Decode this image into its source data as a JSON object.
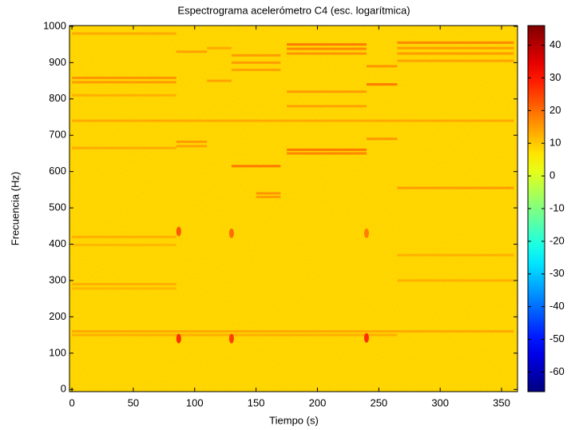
{
  "chart_data": {
    "type": "spectrogram",
    "title": "Espectrograma acelerómetro C4 (esc. logarítmica)",
    "x_label": "Tiempo (s)",
    "y_label": "Frecuencia (Hz)",
    "colormap": "jet",
    "xlim": [
      -2,
      363
    ],
    "xticks": [
      0,
      50,
      100,
      150,
      200,
      250,
      300,
      350
    ],
    "ylim": [
      -6,
      1002
    ],
    "yticks": [
      0,
      100,
      200,
      300,
      400,
      500,
      600,
      700,
      800,
      900,
      1000
    ],
    "clim": [
      -66,
      46
    ],
    "cticks": [
      40,
      30,
      20,
      10,
      0,
      -10,
      -20,
      -30,
      -40,
      -50,
      -60
    ],
    "background_level": 8,
    "lines": [
      {
        "t": [
          0,
          85
        ],
        "f": 980,
        "level": 15
      },
      {
        "t": [
          0,
          85
        ],
        "f": 858,
        "level": 18
      },
      {
        "t": [
          0,
          85
        ],
        "f": 846,
        "level": 17
      },
      {
        "t": [
          0,
          85
        ],
        "f": 810,
        "level": 14
      },
      {
        "t": [
          0,
          360
        ],
        "f": 740,
        "level": 15
      },
      {
        "t": [
          0,
          85
        ],
        "f": 665,
        "level": 15
      },
      {
        "t": [
          0,
          85
        ],
        "f": 420,
        "level": 14
      },
      {
        "t": [
          0,
          85
        ],
        "f": 398,
        "level": 13
      },
      {
        "t": [
          0,
          85
        ],
        "f": 290,
        "level": 14
      },
      {
        "t": [
          0,
          85
        ],
        "f": 278,
        "level": 13
      },
      {
        "t": [
          0,
          360
        ],
        "f": 160,
        "level": 15
      },
      {
        "t": [
          0,
          265
        ],
        "f": 150,
        "level": 14
      },
      {
        "t": [
          85,
          110
        ],
        "f": 930,
        "level": 16
      },
      {
        "t": [
          85,
          110
        ],
        "f": 682,
        "level": 17
      },
      {
        "t": [
          85,
          110
        ],
        "f": 670,
        "level": 16
      },
      {
        "t": [
          110,
          130
        ],
        "f": 940,
        "level": 15
      },
      {
        "t": [
          110,
          130
        ],
        "f": 850,
        "level": 16
      },
      {
        "t": [
          130,
          170
        ],
        "f": 920,
        "level": 17
      },
      {
        "t": [
          130,
          170
        ],
        "f": 900,
        "level": 17
      },
      {
        "t": [
          130,
          170
        ],
        "f": 880,
        "level": 16
      },
      {
        "t": [
          130,
          170
        ],
        "f": 615,
        "level": 22
      },
      {
        "t": [
          150,
          170
        ],
        "f": 540,
        "level": 18
      },
      {
        "t": [
          150,
          170
        ],
        "f": 530,
        "level": 17
      },
      {
        "t": [
          175,
          240
        ],
        "f": 950,
        "level": 22
      },
      {
        "t": [
          175,
          240
        ],
        "f": 938,
        "level": 20
      },
      {
        "t": [
          175,
          240
        ],
        "f": 925,
        "level": 18
      },
      {
        "t": [
          175,
          240
        ],
        "f": 820,
        "level": 17
      },
      {
        "t": [
          175,
          240
        ],
        "f": 780,
        "level": 16
      },
      {
        "t": [
          175,
          240
        ],
        "f": 660,
        "level": 22
      },
      {
        "t": [
          175,
          240
        ],
        "f": 650,
        "level": 20
      },
      {
        "t": [
          240,
          265
        ],
        "f": 890,
        "level": 18
      },
      {
        "t": [
          240,
          265
        ],
        "f": 840,
        "level": 22
      },
      {
        "t": [
          240,
          265
        ],
        "f": 690,
        "level": 18
      },
      {
        "t": [
          265,
          360
        ],
        "f": 955,
        "level": 20
      },
      {
        "t": [
          265,
          360
        ],
        "f": 940,
        "level": 17
      },
      {
        "t": [
          265,
          360
        ],
        "f": 925,
        "level": 17
      },
      {
        "t": [
          265,
          360
        ],
        "f": 905,
        "level": 16
      },
      {
        "t": [
          265,
          360
        ],
        "f": 555,
        "level": 17
      },
      {
        "t": [
          265,
          360
        ],
        "f": 370,
        "level": 14
      },
      {
        "t": [
          265,
          360
        ],
        "f": 300,
        "level": 14
      }
    ],
    "spots": [
      {
        "t": 87,
        "f": 140,
        "level": 30
      },
      {
        "t": 87,
        "f": 435,
        "level": 25
      },
      {
        "t": 130,
        "f": 140,
        "level": 28
      },
      {
        "t": 130,
        "f": 430,
        "level": 22
      },
      {
        "t": 240,
        "f": 142,
        "level": 30
      },
      {
        "t": 240,
        "f": 430,
        "level": 20
      }
    ]
  }
}
